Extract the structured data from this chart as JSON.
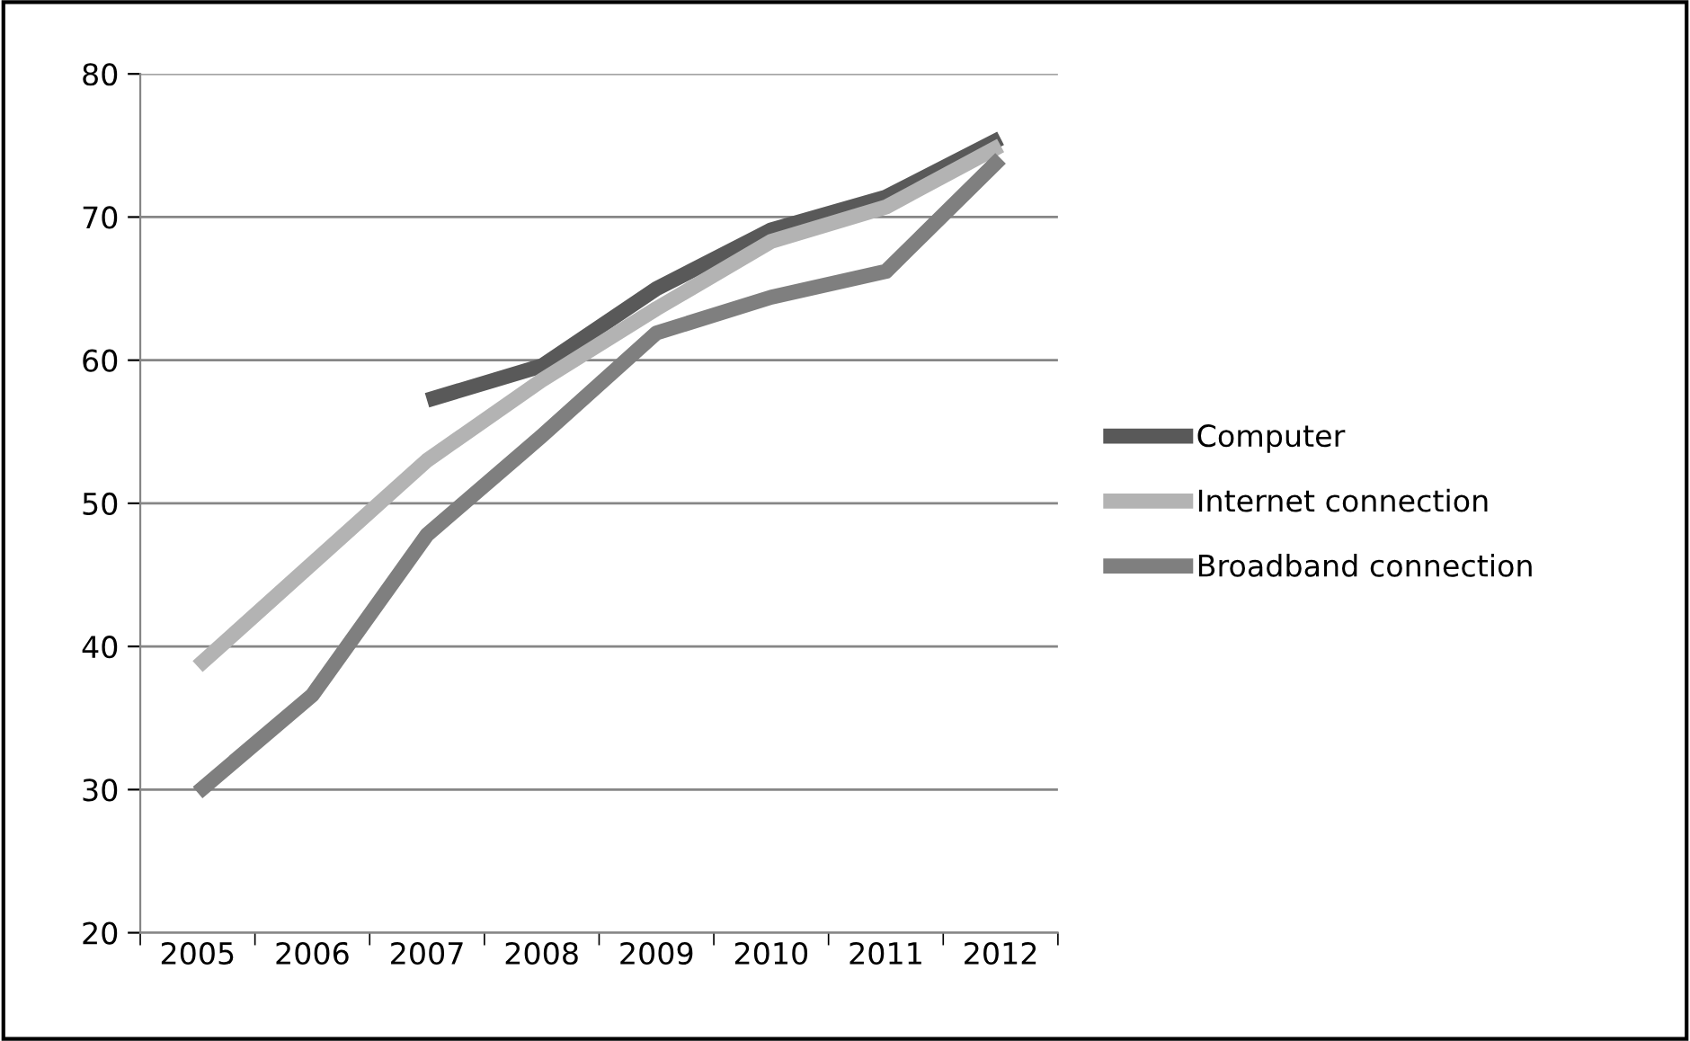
{
  "chart_data": {
    "type": "line",
    "categories": [
      "2005",
      "2006",
      "2007",
      "2008",
      "2009",
      "2010",
      "2011",
      "2012"
    ],
    "series": [
      {
        "name": "Computer",
        "color": "#595959",
        "values": [
          null,
          null,
          57.2,
          59.6,
          65,
          69.1,
          71.4,
          75.5
        ]
      },
      {
        "name": "Internet connection",
        "color": "#b3b3b3",
        "values": [
          38.6,
          45.8,
          53,
          58.6,
          63.6,
          68.3,
          70.7,
          75
        ]
      },
      {
        "name": "Broadband connection",
        "color": "#7f7f7f",
        "values": [
          29.8,
          36.6,
          47.8,
          54.7,
          61.9,
          64.4,
          66.2,
          74.1
        ]
      }
    ],
    "ylim": [
      20,
      80
    ],
    "yticks": [
      20,
      30,
      40,
      50,
      60,
      70,
      80
    ],
    "grid": "y",
    "legend": "right",
    "marker": "none",
    "line_style": "solid"
  }
}
